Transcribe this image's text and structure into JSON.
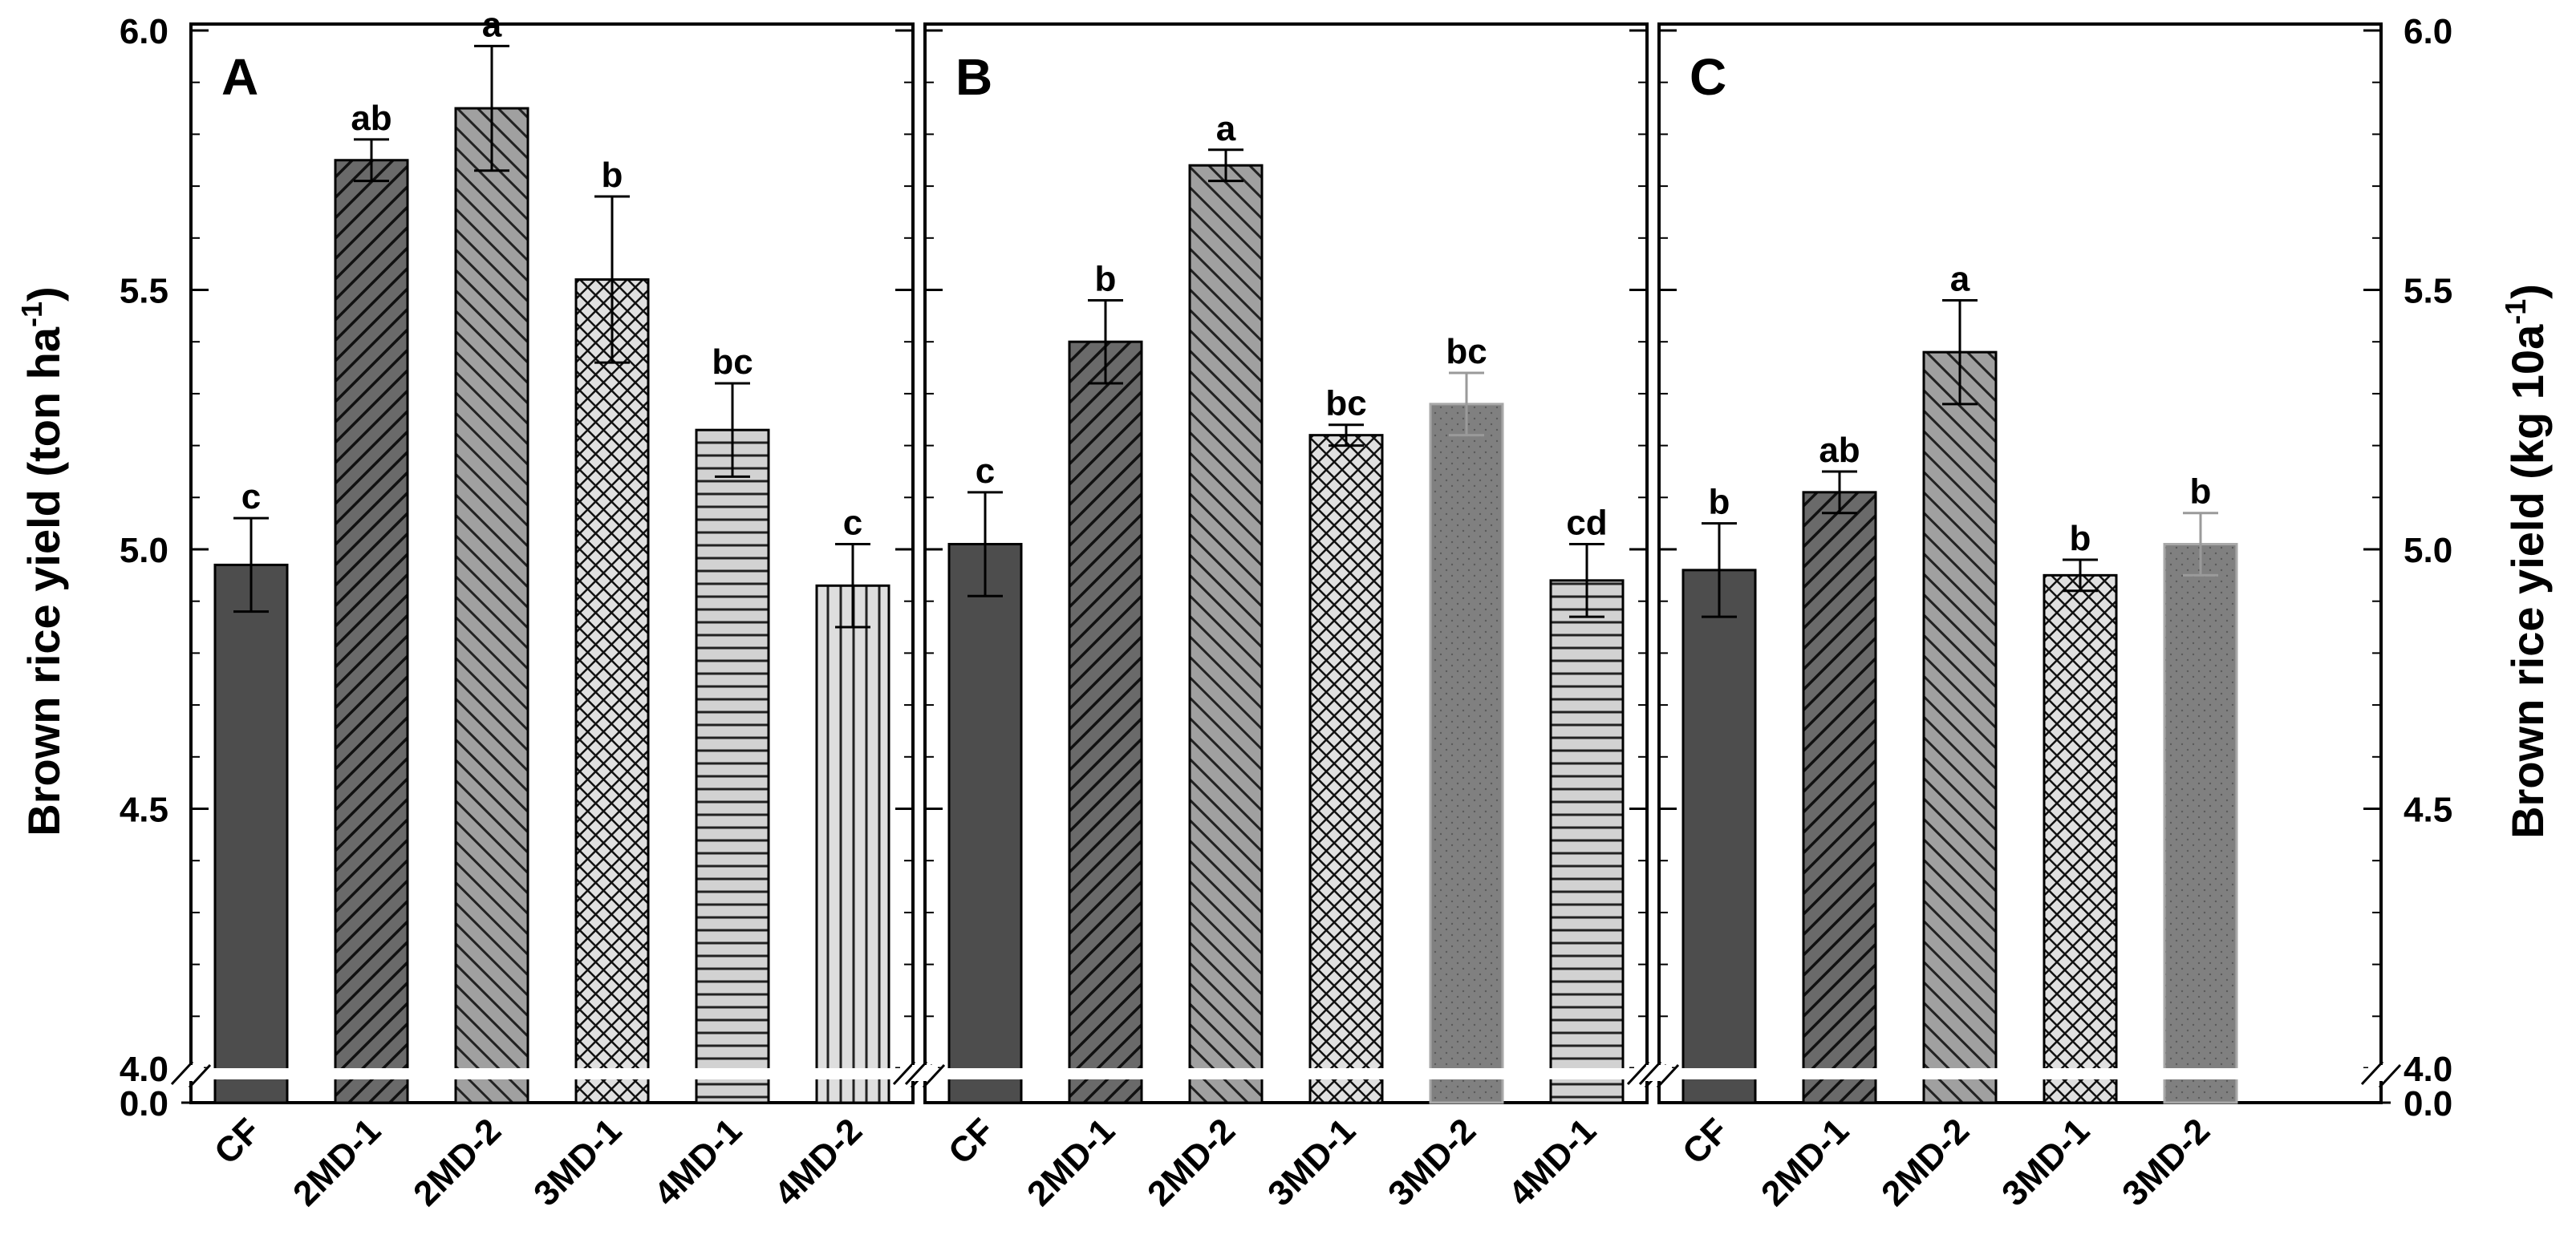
{
  "figure": {
    "ylabel_left": {
      "main": "Brown rice yield (ton ha",
      "sup": "-1",
      "end": ")"
    },
    "ylabel_right": {
      "main": "Brown rice yield (kg 10a",
      "sup": "-1",
      "end": ")"
    },
    "y_ticks": [
      "4.0",
      "4.5",
      "5.0",
      "5.5",
      "6.0"
    ],
    "y_zero_label": "0.0"
  },
  "chart_data": [
    {
      "type": "bar",
      "panel": "A",
      "ylim": [
        4.0,
        6.0
      ],
      "axis_break": [
        0.0,
        4.0
      ],
      "categories": [
        "CF",
        "2MD-1",
        "2MD-2",
        "3MD-1",
        "4MD-1",
        "4MD-2"
      ],
      "values": [
        4.97,
        5.75,
        5.85,
        5.52,
        5.23,
        4.93
      ],
      "errors": [
        0.09,
        0.04,
        0.12,
        0.16,
        0.09,
        0.08
      ],
      "letters": [
        "c",
        "ab",
        "a",
        "b",
        "bc",
        "c"
      ]
    },
    {
      "type": "bar",
      "panel": "B",
      "ylim": [
        4.0,
        6.0
      ],
      "axis_break": [
        0.0,
        4.0
      ],
      "categories": [
        "CF",
        "2MD-1",
        "2MD-2",
        "3MD-1",
        "3MD-2",
        "4MD-1"
      ],
      "values": [
        5.01,
        5.4,
        5.74,
        5.22,
        5.28,
        4.94
      ],
      "errors": [
        0.1,
        0.08,
        0.03,
        0.02,
        0.06,
        0.07
      ],
      "letters": [
        "c",
        "b",
        "a",
        "bc",
        "bc",
        "cd"
      ]
    },
    {
      "type": "bar",
      "panel": "C",
      "ylim": [
        4.0,
        6.0
      ],
      "axis_break": [
        0.0,
        4.0
      ],
      "categories": [
        "CF",
        "2MD-1",
        "2MD-2",
        "3MD-1",
        "3MD-2"
      ],
      "values": [
        4.96,
        5.11,
        5.38,
        4.95,
        5.01
      ],
      "errors": [
        0.09,
        0.04,
        0.1,
        0.03,
        0.06
      ],
      "letters": [
        "b",
        "ab",
        "a",
        "b",
        "b"
      ]
    }
  ],
  "styles": {
    "CF": {
      "fill": "#4d4d4d",
      "pattern": "solid",
      "stroke": "#000000"
    },
    "2MD-1": {
      "fill": "#666666",
      "pattern": "diag-right",
      "stroke": "#000000"
    },
    "2MD-2": {
      "fill": "#9a9a9a",
      "pattern": "diag-left",
      "stroke": "#000000"
    },
    "3MD-1": {
      "fill": "#dddddd",
      "pattern": "crosshatch",
      "stroke": "#000000"
    },
    "3MD-2": {
      "fill": "#808080",
      "pattern": "dots",
      "stroke": "#a8a8a8"
    },
    "4MD-1": {
      "fill": "#cfcfcf",
      "pattern": "horizontal",
      "stroke": "#000000"
    },
    "4MD-2": {
      "fill": "#dcdcdc",
      "pattern": "vertical",
      "stroke": "#000000"
    }
  }
}
